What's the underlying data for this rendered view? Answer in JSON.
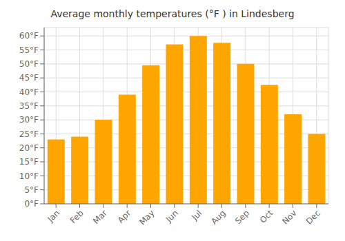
{
  "chart_data": {
    "type": "bar",
    "title": "Average monthly temperatures (°F ) in Lindesberg",
    "categories": [
      "Jan",
      "Feb",
      "Mar",
      "Apr",
      "May",
      "Jun",
      "Jul",
      "Aug",
      "Sep",
      "Oct",
      "Nov",
      "Dec"
    ],
    "values": [
      23.0,
      24.0,
      30.0,
      39.0,
      49.5,
      57.0,
      60.0,
      57.5,
      50.0,
      42.5,
      32.0,
      25.0
    ],
    "color": "#FFA500",
    "ylim": [
      0,
      63
    ],
    "yticks": [
      {
        "value": 0,
        "label": "0°F"
      },
      {
        "value": 5,
        "label": "5°F"
      },
      {
        "value": 10,
        "label": "10°F"
      },
      {
        "value": 15,
        "label": "15°F"
      },
      {
        "value": 20,
        "label": "20°F"
      },
      {
        "value": 25,
        "label": "25°F"
      },
      {
        "value": 30,
        "label": "30°F"
      },
      {
        "value": 35,
        "label": "35°F"
      },
      {
        "value": 40,
        "label": "40°F"
      },
      {
        "value": 45,
        "label": "45°F"
      },
      {
        "value": 50,
        "label": "50°F"
      },
      {
        "value": 55,
        "label": "55°F"
      },
      {
        "value": 60,
        "label": "60°F"
      }
    ],
    "grid": true
  }
}
